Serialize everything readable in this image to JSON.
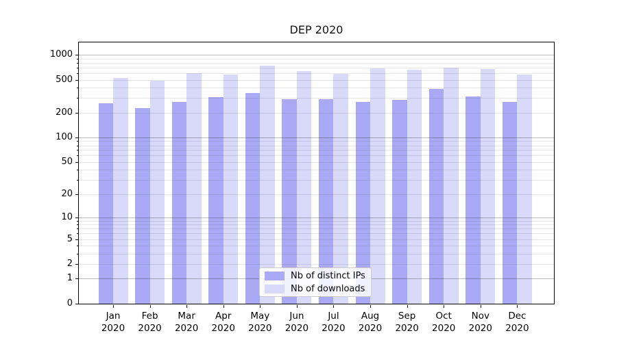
{
  "title": "DEP 2020",
  "chart_data": {
    "type": "bar",
    "title": "DEP 2020",
    "yscale": "log1p-symlog",
    "grid": true,
    "legend_position": "lower center",
    "categories": [
      "Jan",
      "Feb",
      "Mar",
      "Apr",
      "May",
      "Jun",
      "Jul",
      "Aug",
      "Sep",
      "Oct",
      "Nov",
      "Dec"
    ],
    "year_label": "2020",
    "series": [
      {
        "name": "Nb of distinct IPs",
        "color": "#a9a9f5",
        "values": [
          260,
          226,
          268,
          307,
          345,
          291,
          289,
          271,
          284,
          389,
          314,
          269
        ]
      },
      {
        "name": "Nb of downloads",
        "color": "#d9d9fa",
        "values": [
          524,
          483,
          595,
          577,
          738,
          634,
          591,
          688,
          655,
          693,
          672,
          573
        ]
      }
    ],
    "y_tick_labels": [
      0,
      1,
      2,
      5,
      10,
      20,
      50,
      100,
      200,
      500,
      1000
    ],
    "y_decade_lines": [
      1,
      10,
      100,
      1000
    ],
    "y_minor_lines": [
      2,
      3,
      4,
      5,
      6,
      7,
      8,
      9,
      20,
      30,
      40,
      50,
      60,
      70,
      80,
      90,
      200,
      300,
      400,
      500,
      600,
      700,
      800,
      900
    ],
    "ylim": [
      0,
      1435
    ]
  },
  "legend": {
    "items": [
      {
        "label": "Nb of distinct IPs",
        "color": "#a9a9f5"
      },
      {
        "label": "Nb of downloads",
        "color": "#d9d9fa"
      }
    ]
  }
}
